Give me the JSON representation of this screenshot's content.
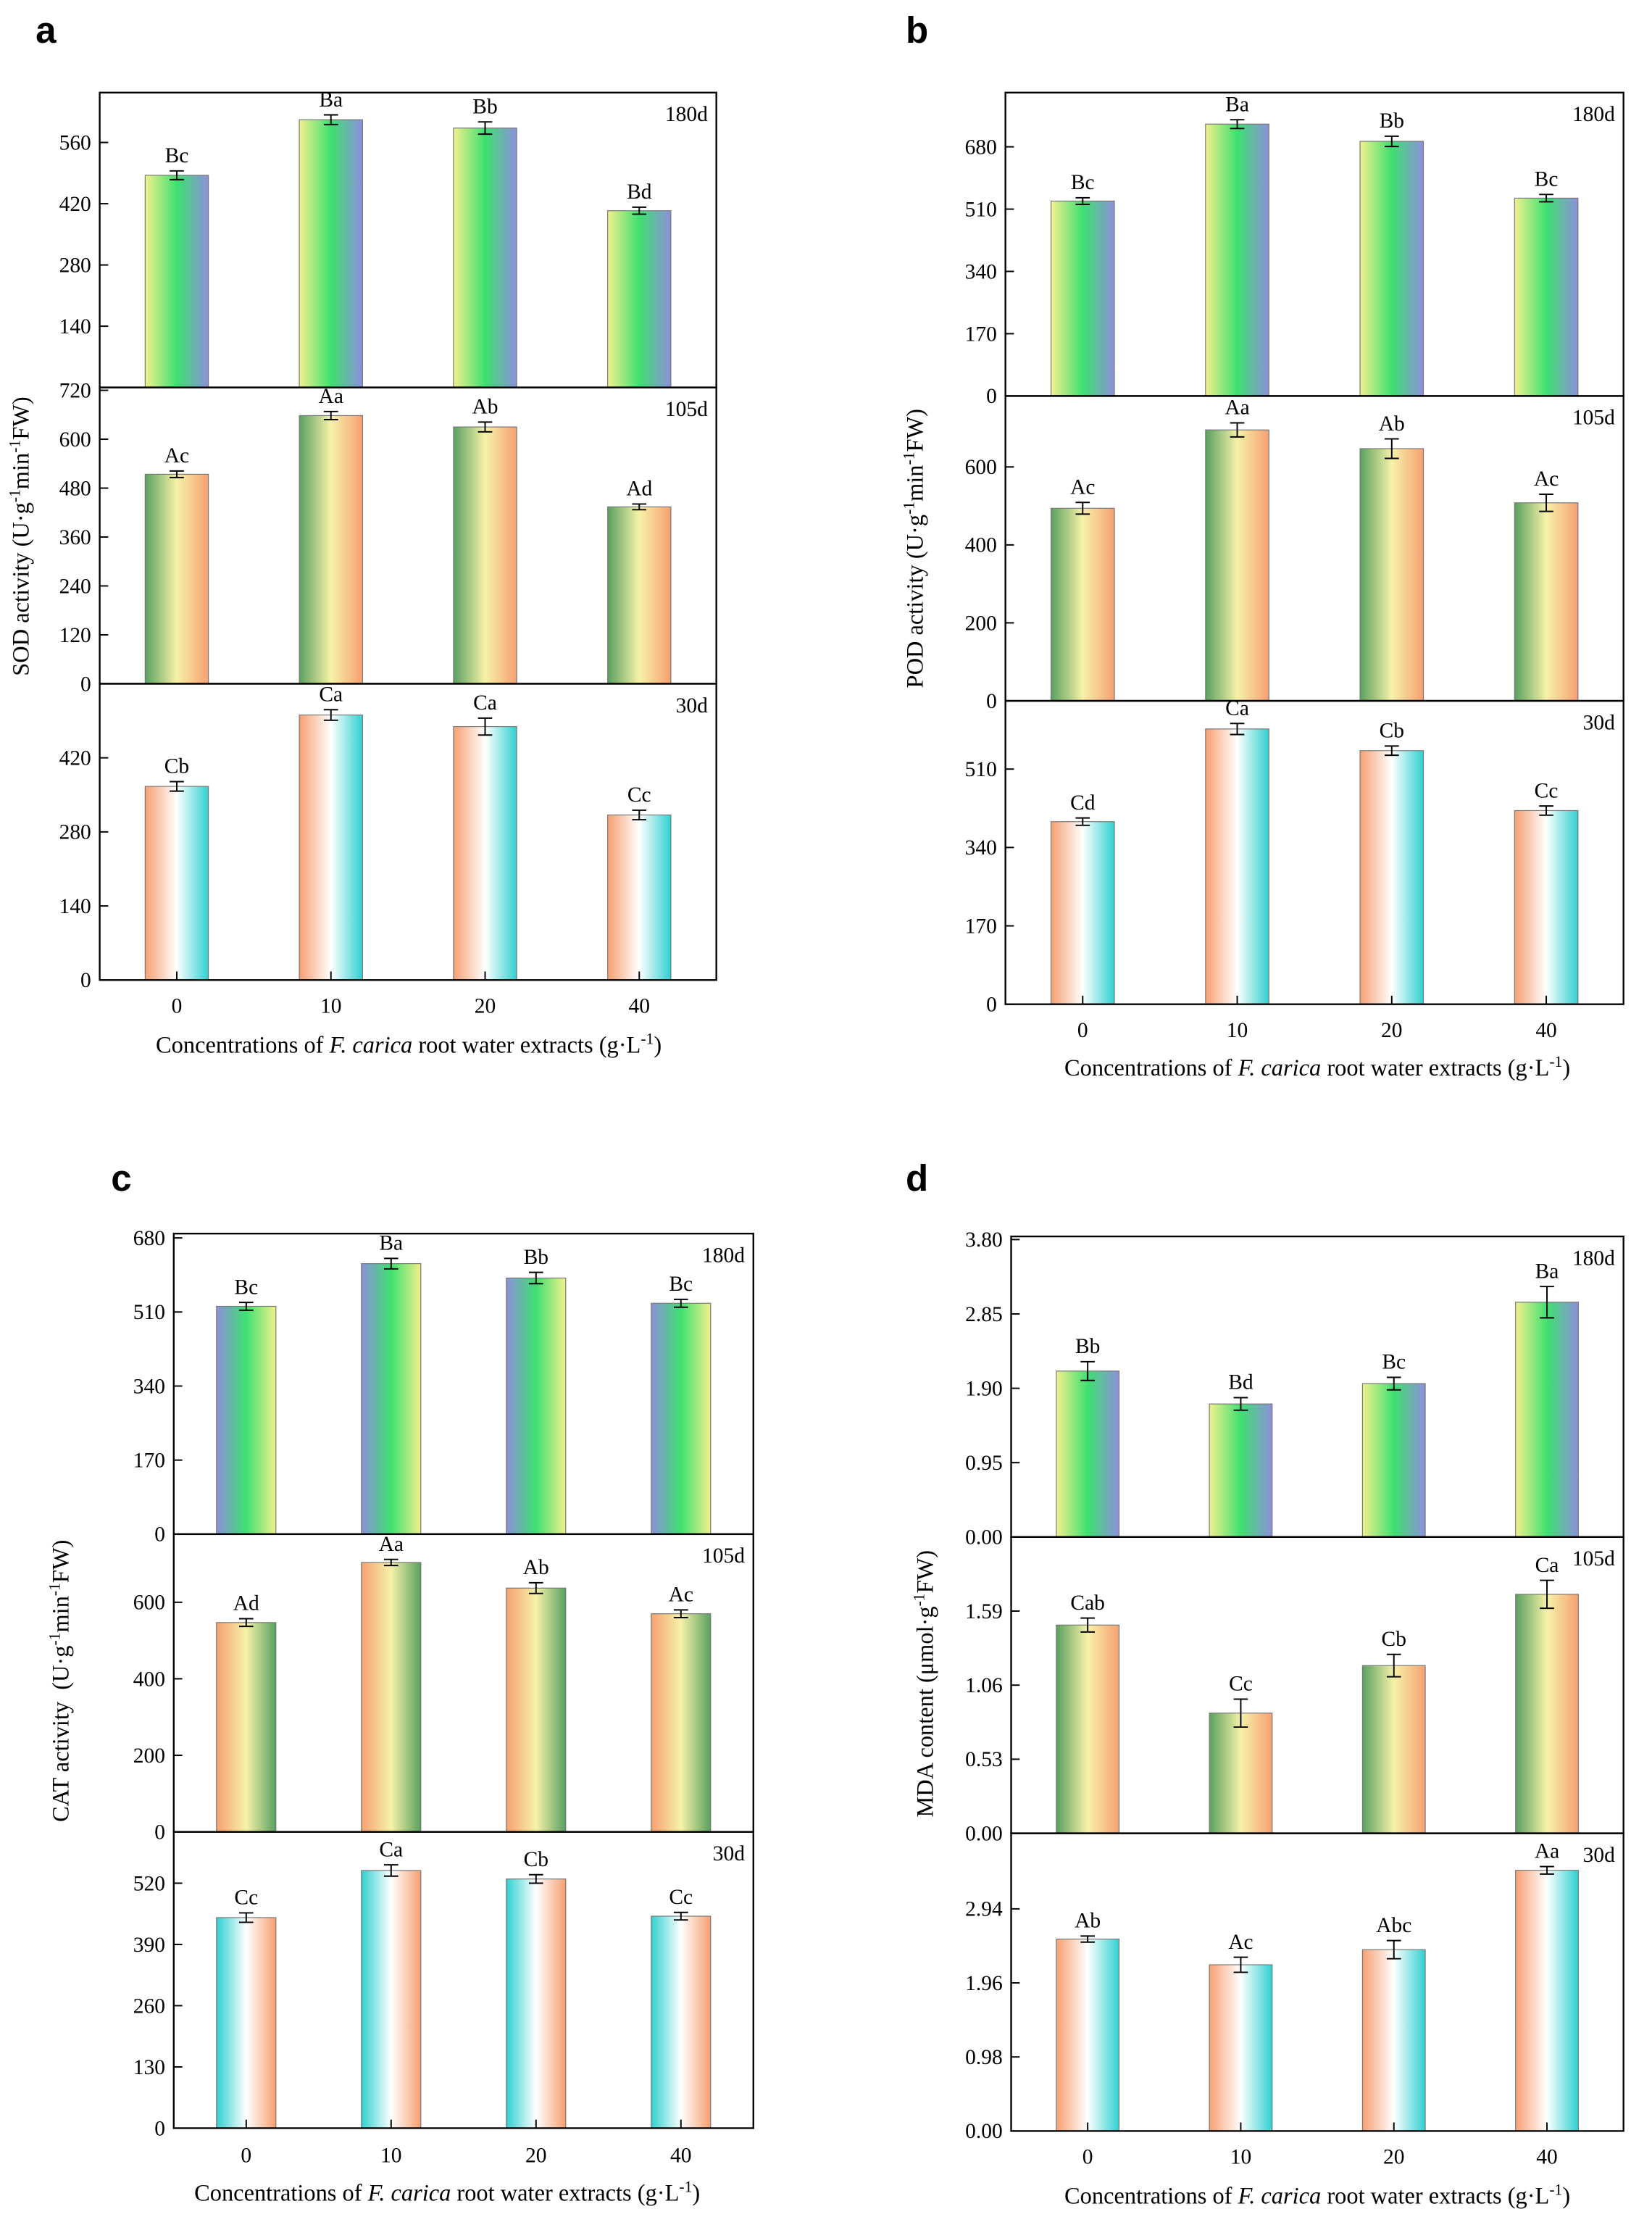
{
  "chart_data": [
    {
      "type": "bar",
      "panel": "a",
      "y_label": [
        {
          "text": "SOD activity (U·g"
        },
        {
          "text": "-1",
          "sup": true
        },
        {
          "text": "min"
        },
        {
          "text": "-1",
          "sup": true
        },
        {
          "text": "FW)"
        }
      ],
      "x_label": [
        {
          "text": "Concentrations of "
        },
        {
          "text": "F. carica",
          "italic": true
        },
        {
          "text": " root water extracts (g·L"
        },
        {
          "text": "-1",
          "sup": true
        },
        {
          "text": ")"
        }
      ],
      "categories": [
        "0",
        "10",
        "20",
        "40"
      ],
      "subplots": [
        {
          "label": "180d",
          "colors": [
            "#f2f08c",
            "#3ee070",
            "#8c90dc"
          ],
          "ylim": [
            0,
            674
          ],
          "yticks": [
            140,
            280,
            420,
            560
          ],
          "values": [
            485,
            612,
            593,
            404
          ],
          "errors": [
            10,
            11,
            14,
            8
          ],
          "letters": [
            "Bc",
            "Ba",
            "Bb",
            "Bd"
          ]
        },
        {
          "label": "105d",
          "colors": [
            "#5aa060",
            "#f6f2a8",
            "#f6a072"
          ],
          "ylim": [
            0,
            727
          ],
          "yticks": [
            0,
            120,
            240,
            360,
            480,
            600,
            720
          ],
          "values": [
            514,
            658,
            630,
            434
          ],
          "errors": [
            8,
            10,
            12,
            7
          ],
          "letters": [
            "Ac",
            "Aa",
            "Ab",
            "Ad"
          ]
        },
        {
          "label": "30d",
          "colors": [
            "#f6a072",
            "#ffffff",
            "#30d0d0"
          ],
          "ylim": [
            0,
            560
          ],
          "yticks": [
            0,
            140,
            280,
            420
          ],
          "values": [
            366,
            501,
            479,
            312
          ],
          "errors": [
            9,
            10,
            16,
            9
          ],
          "letters": [
            "Cb",
            "Ca",
            "Ca",
            "Cc"
          ]
        }
      ]
    },
    {
      "type": "bar",
      "panel": "b",
      "y_label": [
        {
          "text": "POD activity (U·g"
        },
        {
          "text": "-1",
          "sup": true
        },
        {
          "text": "min"
        },
        {
          "text": "-1",
          "sup": true
        },
        {
          "text": "FW)"
        }
      ],
      "x_label": [
        {
          "text": "Concentrations of "
        },
        {
          "text": "F. carica",
          "italic": true
        },
        {
          "text": " root water extracts (g·L"
        },
        {
          "text": "-1",
          "sup": true
        },
        {
          "text": ")"
        }
      ],
      "categories": [
        "0",
        "10",
        "20",
        "40"
      ],
      "subplots": [
        {
          "label": "180d",
          "colors": [
            "#f2f08c",
            "#3ee070",
            "#8c90dc"
          ],
          "ylim": [
            0,
            828
          ],
          "yticks": [
            0,
            170,
            340,
            510,
            680
          ],
          "values": [
            532,
            742,
            695,
            540
          ],
          "errors": [
            9,
            12,
            14,
            10
          ],
          "letters": [
            "Bc",
            "Ba",
            "Bb",
            "Bc"
          ]
        },
        {
          "label": "105d",
          "colors": [
            "#5aa060",
            "#f6f2a8",
            "#f6a072"
          ],
          "ylim": [
            0,
            782
          ],
          "yticks": [
            0,
            200,
            400,
            600
          ],
          "values": [
            494,
            695,
            647,
            508
          ],
          "errors": [
            15,
            18,
            25,
            22
          ],
          "letters": [
            "Ac",
            "Aa",
            "Ab",
            "Ac"
          ]
        },
        {
          "label": "30d",
          "colors": [
            "#f6a072",
            "#ffffff",
            "#30d0d0"
          ],
          "ylim": [
            0,
            658
          ],
          "yticks": [
            0,
            170,
            340,
            510
          ],
          "values": [
            396,
            597,
            550,
            420
          ],
          "errors": [
            8,
            12,
            10,
            10
          ],
          "letters": [
            "Cd",
            "Ca",
            "Cb",
            "Cc"
          ]
        }
      ]
    },
    {
      "type": "bar",
      "panel": "c",
      "y_label": [
        {
          "text": "CAT activity  (U·g"
        },
        {
          "text": "-1",
          "sup": true
        },
        {
          "text": "min"
        },
        {
          "text": "-1",
          "sup": true
        },
        {
          "text": "FW)"
        }
      ],
      "x_label": [
        {
          "text": "Concentrations of "
        },
        {
          "text": "F. carica",
          "italic": true
        },
        {
          "text": " root water extracts (g·L"
        },
        {
          "text": "-1",
          "sup": true
        },
        {
          "text": ")"
        }
      ],
      "categories": [
        "0",
        "10",
        "20",
        "40"
      ],
      "subplots": [
        {
          "label": "180d",
          "colors": [
            "#8c90dc",
            "#3ee070",
            "#f2f08c"
          ],
          "ylim": [
            0,
            690
          ],
          "yticks": [
            0,
            170,
            340,
            510,
            680
          ],
          "values": [
            523,
            621,
            588,
            530
          ],
          "errors": [
            9,
            12,
            13,
            9
          ],
          "letters": [
            "Bc",
            "Ba",
            "Bb",
            "Bc"
          ]
        },
        {
          "label": "105d",
          "colors": [
            "#f6a072",
            "#f6f2a8",
            "#5aa060"
          ],
          "ylim": [
            0,
            778
          ],
          "yticks": [
            0,
            200,
            400,
            600
          ],
          "values": [
            547,
            704,
            637,
            570
          ],
          "errors": [
            10,
            8,
            14,
            10
          ],
          "letters": [
            "Ad",
            "Aa",
            "Ab",
            "Ac"
          ]
        },
        {
          "label": "30d",
          "colors": [
            "#30d0d0",
            "#ffffff",
            "#f6a072"
          ],
          "ylim": [
            0,
            629
          ],
          "yticks": [
            0,
            130,
            260,
            390,
            520
          ],
          "values": [
            447,
            547,
            529,
            450
          ],
          "errors": [
            10,
            12,
            9,
            8
          ],
          "letters": [
            "Cc",
            "Ca",
            "Cb",
            "Cc"
          ]
        }
      ]
    },
    {
      "type": "bar",
      "panel": "d",
      "y_label": [
        {
          "text": "MDA content (μmol·g"
        },
        {
          "text": "-1",
          "sup": true
        },
        {
          "text": "FW)"
        }
      ],
      "x_label": [
        {
          "text": "Concentrations of "
        },
        {
          "text": "F. carica",
          "italic": true
        },
        {
          "text": " root water extracts (g·L"
        },
        {
          "text": "-1",
          "sup": true
        },
        {
          "text": ")"
        }
      ],
      "categories": [
        "0",
        "10",
        "20",
        "40"
      ],
      "subplots": [
        {
          "label": "180d",
          "colors": [
            "#f2f08c",
            "#3ee070",
            "#8c90dc"
          ],
          "ylim": [
            0,
            3.84
          ],
          "yticks": [
            {
              "value": 0,
              "label": "0.00"
            },
            {
              "value": 0.95,
              "label": "0.95"
            },
            {
              "value": 1.9,
              "label": "1.90"
            },
            {
              "value": 2.85,
              "label": "2.85"
            },
            {
              "value": 3.8,
              "label": "3.80"
            }
          ],
          "values": [
            2.12,
            1.7,
            1.96,
            3.0
          ],
          "errors": [
            0.12,
            0.08,
            0.08,
            0.2
          ],
          "letters": [
            "Bb",
            "Bd",
            "Bc",
            "Ba"
          ]
        },
        {
          "label": "105d",
          "colors": [
            "#5aa060",
            "#f6f2a8",
            "#f6a072"
          ],
          "ylim": [
            0,
            2.12
          ],
          "yticks": [
            {
              "value": 0,
              "label": "0.00"
            },
            0.53,
            1.06,
            1.59
          ],
          "values": [
            1.49,
            0.86,
            1.2,
            1.71
          ],
          "errors": [
            0.05,
            0.1,
            0.08,
            0.1
          ],
          "letters": [
            "Cab",
            "Cc",
            "Cb",
            "Ca"
          ]
        },
        {
          "label": "30d",
          "colors": [
            "#f6a072",
            "#ffffff",
            "#30d0d0"
          ],
          "ylim": [
            0,
            3.94
          ],
          "yticks": [
            {
              "value": 0,
              "label": "0.00"
            },
            0.98,
            1.96,
            2.94
          ],
          "values": [
            2.54,
            2.2,
            2.4,
            3.45
          ],
          "errors": [
            0.04,
            0.1,
            0.12,
            0.05
          ],
          "letters": [
            "Ab",
            "Ac",
            "Abc",
            "Aa"
          ]
        }
      ]
    }
  ]
}
